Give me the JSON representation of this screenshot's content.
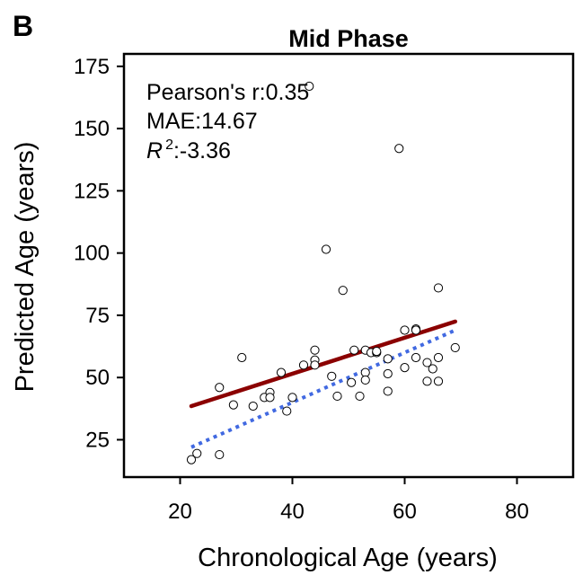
{
  "panel_label": "B",
  "chart_data": {
    "type": "scatter",
    "title": "Mid Phase",
    "xlabel": "Chronological Age (years)",
    "ylabel": "Predicted Age (years)",
    "xlim": [
      10,
      90
    ],
    "ylim": [
      10,
      180
    ],
    "xticks": [
      20,
      40,
      60,
      80
    ],
    "yticks": [
      25,
      50,
      75,
      100,
      125,
      150,
      175
    ],
    "grid": false,
    "stats": {
      "pearson": "Pearson's r:0.35",
      "mae": "MAE:14.67",
      "r2_symbol": "R",
      "r2_sup": "2",
      "r2_value": ":-3.36"
    },
    "series": [
      {
        "type": "scatter",
        "marker": "open-circle",
        "x": [
          22,
          23,
          27,
          27,
          29.5,
          31,
          33,
          35,
          36,
          36,
          38,
          39,
          40,
          42,
          43,
          44,
          44,
          44,
          46,
          47,
          48,
          49,
          50.5,
          51,
          52,
          53,
          53,
          53,
          54,
          55,
          55,
          57,
          57,
          57,
          59,
          60,
          60,
          62,
          62,
          62,
          64,
          64,
          65,
          66,
          66,
          66,
          69
        ],
        "y": [
          17,
          19.5,
          19,
          46,
          39,
          58,
          38.5,
          42,
          44,
          42,
          52,
          36.5,
          42,
          55,
          167,
          61,
          57,
          55,
          101.5,
          50.5,
          42.5,
          85,
          48,
          61,
          42.5,
          52,
          49,
          61,
          60,
          60,
          60.5,
          51.5,
          57.5,
          44.5,
          142,
          69,
          54,
          69.5,
          58,
          69,
          56,
          48.5,
          53.5,
          86,
          58,
          48.5,
          62
        ]
      },
      {
        "type": "line",
        "color": "#8b0000",
        "style": "solid",
        "x": [
          22,
          69
        ],
        "y": [
          38.5,
          72.5
        ]
      },
      {
        "type": "line",
        "color": "#4169e1",
        "style": "dotted",
        "x": [
          22,
          69
        ],
        "y": [
          22,
          69
        ]
      }
    ]
  }
}
